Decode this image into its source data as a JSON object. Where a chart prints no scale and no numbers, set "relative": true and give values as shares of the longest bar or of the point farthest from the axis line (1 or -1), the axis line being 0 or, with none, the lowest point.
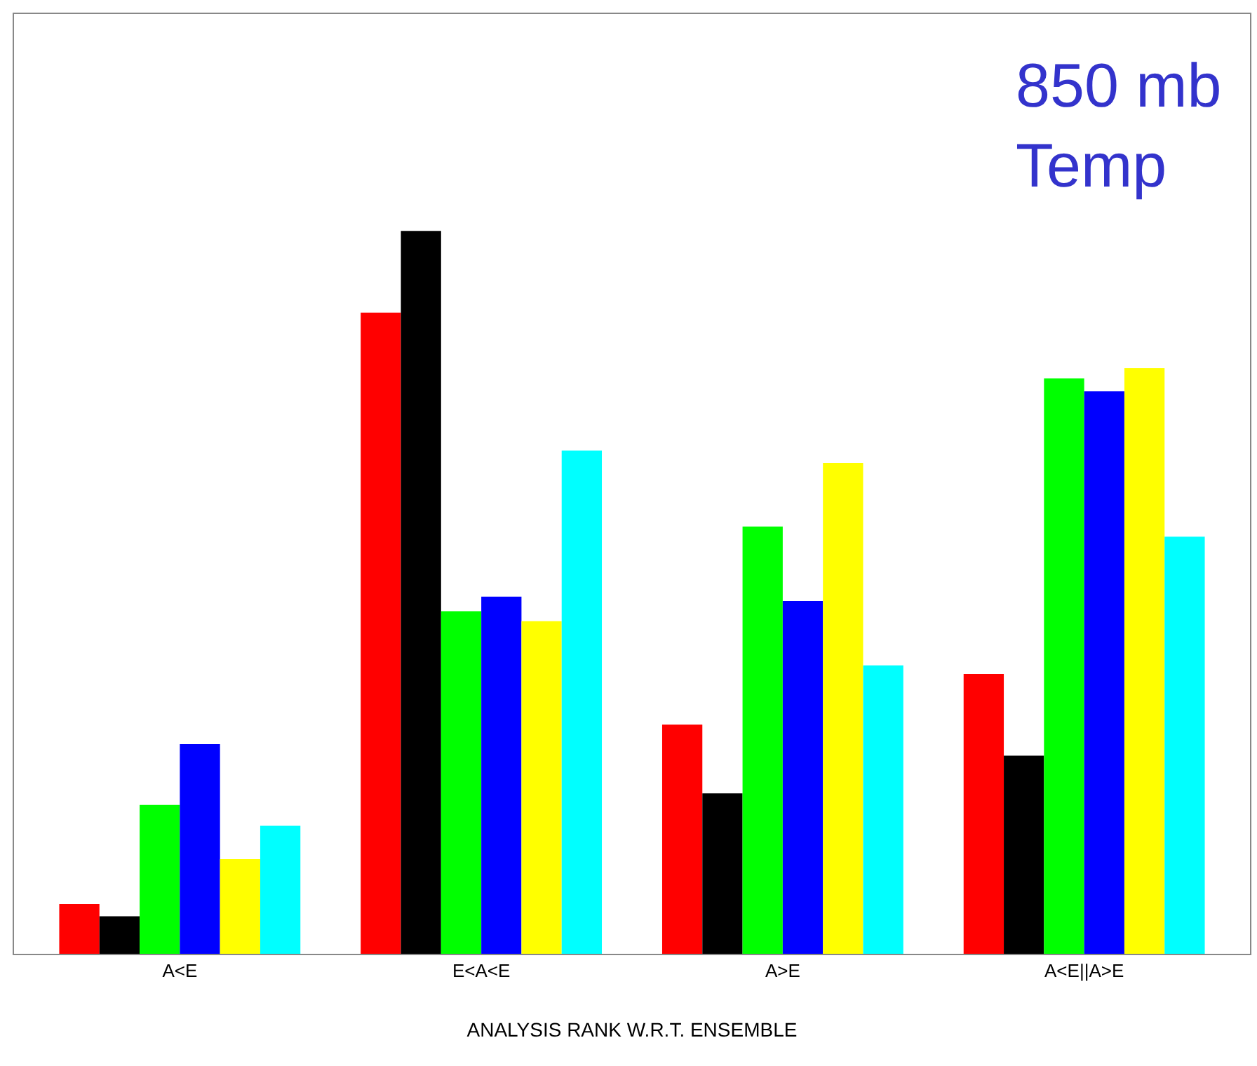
{
  "chart_data": {
    "type": "bar",
    "relative": true,
    "xlabel": "ANALYSIS RANK W.R.T. ENSEMBLE",
    "categories": [
      "A<E",
      "E<A<E",
      "A>E",
      "A<E||A>E"
    ],
    "series": [
      {
        "color": "#ff0000",
        "values": [
          0.069,
          0.887,
          0.317,
          0.387
        ]
      },
      {
        "color": "#000000",
        "values": [
          0.052,
          1,
          0.222,
          0.274
        ]
      },
      {
        "color": "#00ff00",
        "values": [
          0.206,
          0.474,
          0.591,
          0.796
        ]
      },
      {
        "color": "#0000ff",
        "values": [
          0.29,
          0.494,
          0.488,
          0.778
        ]
      },
      {
        "color": "#ffff00",
        "values": [
          0.131,
          0.46,
          0.679,
          0.81
        ]
      },
      {
        "color": "#00ffff",
        "values": [
          0.177,
          0.696,
          0.399,
          0.577
        ]
      }
    ],
    "annotations": [
      "850 mb\nTemp"
    ]
  }
}
